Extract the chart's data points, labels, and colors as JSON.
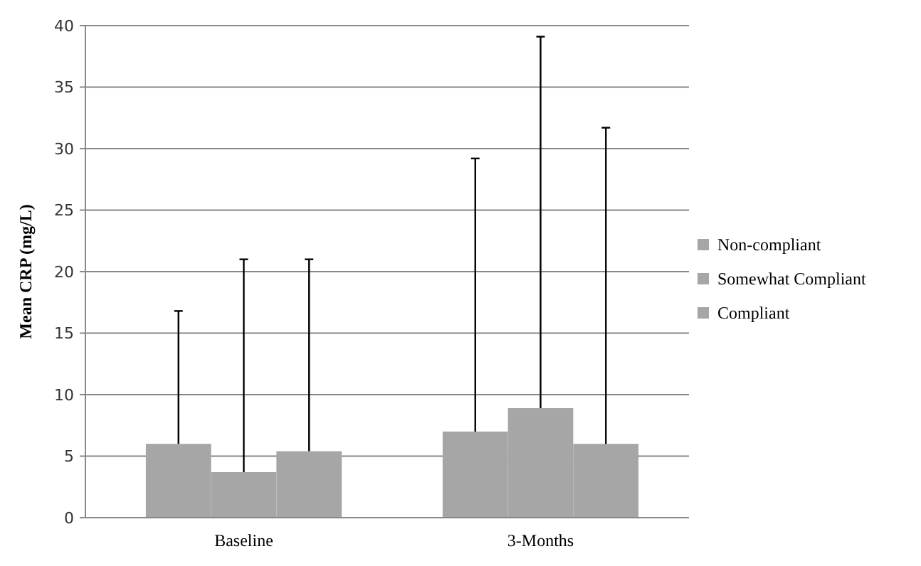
{
  "chart_data": {
    "type": "bar",
    "ylabel": "Mean CRP (mg/L)",
    "categories": [
      "Baseline",
      "3-Months"
    ],
    "series": [
      {
        "name": "Non-compliant",
        "color": "#a6a6a6",
        "values": [
          6.0,
          7.0
        ],
        "errors": [
          [
            6.0,
            16.8
          ],
          [
            7.0,
            29.2
          ]
        ]
      },
      {
        "name": "Somewhat Compliant",
        "color": "#a6a6a6",
        "values": [
          3.7,
          8.9
        ],
        "errors": [
          [
            3.7,
            21.0
          ],
          [
            8.9,
            39.1
          ]
        ]
      },
      {
        "name": "Compliant",
        "color": "#a6a6a6",
        "values": [
          5.4,
          6.0
        ],
        "errors": [
          [
            5.4,
            21.0
          ],
          [
            6.0,
            31.7
          ]
        ]
      }
    ],
    "ylim": [
      0,
      40
    ],
    "yticks": [
      0,
      5,
      10,
      15,
      20,
      25,
      30,
      35,
      40
    ],
    "grid": "y",
    "legend": "right"
  }
}
